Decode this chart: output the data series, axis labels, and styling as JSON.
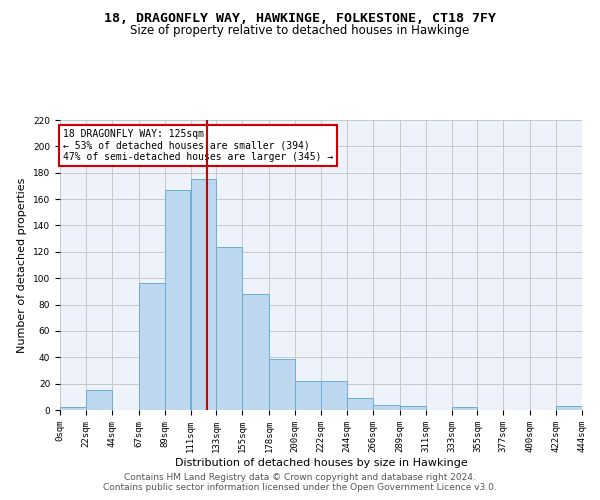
{
  "title": "18, DRAGONFLY WAY, HAWKINGE, FOLKESTONE, CT18 7FY",
  "subtitle": "Size of property relative to detached houses in Hawkinge",
  "xlabel": "Distribution of detached houses by size in Hawkinge",
  "ylabel": "Number of detached properties",
  "bar_color": "#bdd7ee",
  "bar_edge_color": "#6baed6",
  "bg_color": "#eef2fb",
  "grid_color": "#c8c8c8",
  "annotation_text": "18 DRAGONFLY WAY: 125sqm\n← 53% of detached houses are smaller (394)\n47% of semi-detached houses are larger (345) →",
  "vline_x": 125,
  "vline_color": "#cc0000",
  "bins": [
    0,
    22,
    44,
    67,
    89,
    111,
    133,
    155,
    178,
    200,
    222,
    244,
    266,
    289,
    311,
    333,
    355,
    377,
    400,
    422,
    444
  ],
  "bin_labels": [
    "0sqm",
    "22sqm",
    "44sqm",
    "67sqm",
    "89sqm",
    "111sqm",
    "133sqm",
    "155sqm",
    "178sqm",
    "200sqm",
    "222sqm",
    "244sqm",
    "266sqm",
    "289sqm",
    "311sqm",
    "333sqm",
    "355sqm",
    "377sqm",
    "400sqm",
    "422sqm",
    "444sqm"
  ],
  "bar_heights": [
    2,
    15,
    0,
    96,
    167,
    175,
    124,
    88,
    39,
    22,
    22,
    9,
    4,
    3,
    0,
    2,
    0,
    0,
    0,
    3
  ],
  "ylim": [
    0,
    220
  ],
  "yticks": [
    0,
    20,
    40,
    60,
    80,
    100,
    120,
    140,
    160,
    180,
    200,
    220
  ],
  "footer_line1": "Contains HM Land Registry data © Crown copyright and database right 2024.",
  "footer_line2": "Contains public sector information licensed under the Open Government Licence v3.0.",
  "title_fontsize": 9.5,
  "subtitle_fontsize": 8.5,
  "ylabel_fontsize": 8,
  "xlabel_fontsize": 8,
  "tick_fontsize": 6.5,
  "annot_fontsize": 7,
  "footer_fontsize": 6.5
}
